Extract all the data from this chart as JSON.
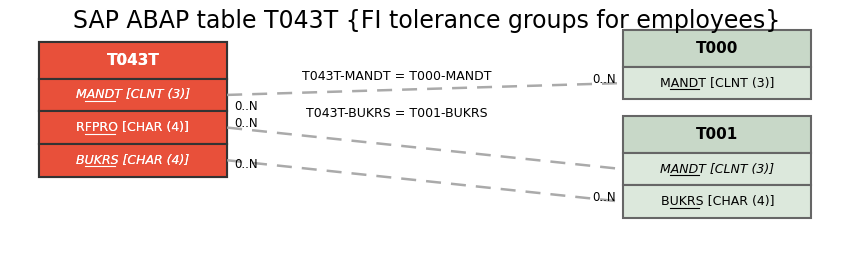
{
  "title": "SAP ABAP table T043T {FI tolerance groups for employees}",
  "title_fontsize": 17,
  "background_color": "#ffffff",
  "main_table": {
    "name": "T043T",
    "header_color": "#e8503a",
    "header_text_color": "#ffffff",
    "fields": [
      {
        "text": "MANDT [CLNT (3)]",
        "italic": true,
        "underline": true
      },
      {
        "text": "RFPRO [CHAR (4)]",
        "italic": false,
        "underline": true
      },
      {
        "text": "BUKRS [CHAR (4)]",
        "italic": true,
        "underline": true
      }
    ],
    "field_color": "#e8503a",
    "field_text_color": "#ffffff",
    "border_color": "#333333"
  },
  "t000_table": {
    "name": "T000",
    "header_color": "#c8d8c8",
    "header_text_color": "#000000",
    "fields": [
      {
        "text": "MANDT [CLNT (3)]",
        "italic": false,
        "underline": true
      }
    ],
    "field_color": "#dce8dc",
    "field_text_color": "#000000",
    "border_color": "#666666"
  },
  "t001_table": {
    "name": "T001",
    "header_color": "#c8d8c8",
    "header_text_color": "#000000",
    "fields": [
      {
        "text": "MANDT [CLNT (3)]",
        "italic": true,
        "underline": true
      },
      {
        "text": "BUKRS [CHAR (4)]",
        "italic": false,
        "underline": true
      }
    ],
    "field_color": "#dce8dc",
    "field_text_color": "#000000",
    "border_color": "#666666"
  },
  "rel1_label": "T043T-MANDT = T000-MANDT",
  "rel2_label": "T043T-BUKRS = T001-BUKRS",
  "cardinality": "0..N",
  "line_color": "#aaaaaa",
  "label_fontsize": 9,
  "field_fontsize": 9,
  "header_fontsize": 11,
  "card_fontsize": 8.5
}
